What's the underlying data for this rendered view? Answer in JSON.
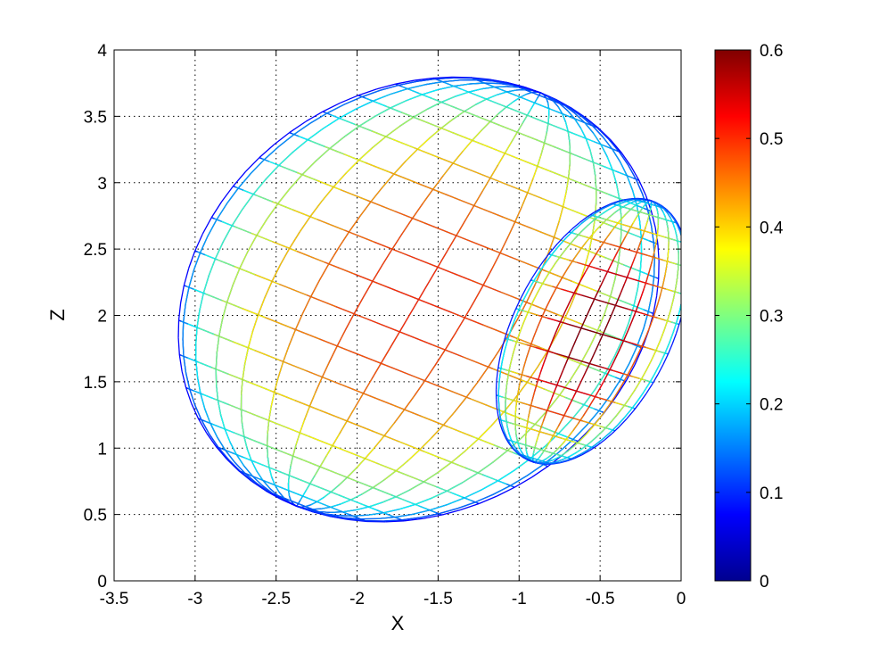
{
  "chart_data": {
    "type": "line",
    "description_of_marks": "wireframe surface projected on X-Z plane, colored by a scalar value",
    "xlabel": "X",
    "ylabel": "Z",
    "xlim": [
      -3.5,
      0
    ],
    "ylim": [
      0,
      4
    ],
    "xticks": [
      "-3.5",
      "-3",
      "-2.5",
      "-2",
      "-1.5",
      "-1",
      "-0.5",
      "0"
    ],
    "yticks": [
      "0",
      "0.5",
      "1",
      "1.5",
      "2",
      "2.5",
      "3",
      "3.5",
      "4"
    ],
    "grid": true,
    "colorbar": {
      "colormap": "jet",
      "range": [
        0,
        0.6
      ],
      "ticks": [
        "0",
        "0.1",
        "0.2",
        "0.3",
        "0.4",
        "0.5",
        "0.6"
      ]
    },
    "surface": {
      "outer_lobe": {
        "center": [
          -1.62,
          2.12
        ],
        "rx": 1.42,
        "rz": 1.73,
        "peak_value": 0.5
      },
      "inner_lobe": {
        "center": [
          -0.55,
          1.88
        ],
        "rx": 0.5,
        "rz": 1.05,
        "peak_value": 0.6
      }
    }
  }
}
